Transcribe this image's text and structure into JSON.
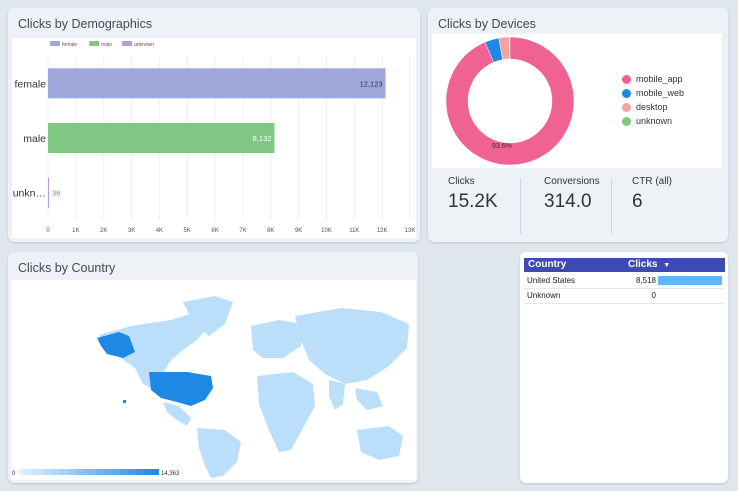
{
  "demographics": {
    "title": "Clicks by Demographics",
    "legend": [
      {
        "label": "female",
        "color": "#9fa8da"
      },
      {
        "label": "male",
        "color": "#81c784"
      },
      {
        "label": "unknown",
        "color": "#b39ddb"
      }
    ],
    "x_ticks": [
      "0",
      "1K",
      "2K",
      "3K",
      "4K",
      "5K",
      "6K",
      "7K",
      "8K",
      "9K",
      "10K",
      "11K",
      "12K",
      "13K"
    ]
  },
  "chart_data": {
    "type": "bar",
    "orientation": "horizontal",
    "categories": [
      "female",
      "male",
      "unkn…"
    ],
    "values": [
      12123,
      8132,
      36
    ],
    "value_labels": [
      "12,123",
      "8,132",
      "36"
    ],
    "xlim": [
      0,
      13000
    ],
    "grid": true,
    "legend": "top-left"
  },
  "devices": {
    "title": "Clicks by Devices",
    "slices": [
      {
        "label": "mobile_app",
        "value": 93.6,
        "color": "#f06292"
      },
      {
        "label": "mobile_web",
        "value": 3.6,
        "color": "#1e88e5"
      },
      {
        "label": "desktop",
        "value": 2.6,
        "color": "#f4a3a3"
      },
      {
        "label": "unknown",
        "value": 0.2,
        "color": "#81c784"
      }
    ],
    "center_label": "93.6%",
    "kpis": [
      {
        "label": "Clicks",
        "value": "15.2K"
      },
      {
        "label": "Conversions",
        "value": "314.0"
      },
      {
        "label": "CTR (all)",
        "value": "6"
      }
    ]
  },
  "country_map": {
    "title": "Clicks by Country",
    "scale_min": "0",
    "scale_max": "14,363",
    "highlight_color": "#1e88e5",
    "base_color": "#bbdefb"
  },
  "country_table": {
    "headers": [
      "Country",
      "Clicks"
    ],
    "sort_indicator": "▼",
    "rows": [
      {
        "country": "United States",
        "clicks": "8,518",
        "fraction": 1.0
      },
      {
        "country": "Unknown",
        "clicks": "0",
        "fraction": 0.0
      }
    ]
  }
}
